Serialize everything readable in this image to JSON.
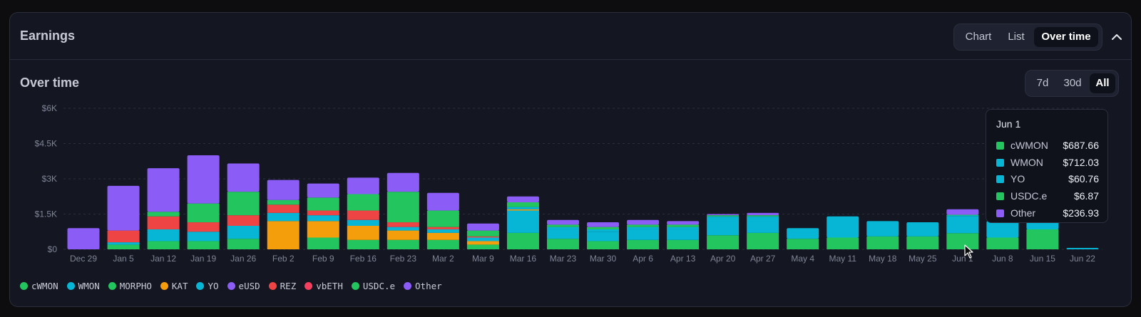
{
  "header": {
    "title": "Earnings",
    "view_options": [
      {
        "label": "Chart",
        "active": false
      },
      {
        "label": "List",
        "active": false
      },
      {
        "label": "Over time",
        "active": true
      }
    ],
    "collapse_icon": "chevron-up-icon"
  },
  "section": {
    "title": "Over time",
    "range_options": [
      {
        "label": "7d",
        "active": false
      },
      {
        "label": "30d",
        "active": false
      },
      {
        "label": "All",
        "active": true
      }
    ]
  },
  "colors": {
    "cWMON": "#22c55e",
    "WMON": "#06b6d4",
    "MORPHO": "#22c55e",
    "KAT": "#f59e0b",
    "YO": "#06b6d4",
    "eUSD": "#8b5cf6",
    "REZ": "#ef4444",
    "vbETH": "#f43f5e",
    "USDC.e": "#22c55e",
    "Other": "#8b5cf6"
  },
  "legend": [
    "cWMON",
    "WMON",
    "MORPHO",
    "KAT",
    "YO",
    "eUSD",
    "REZ",
    "vbETH",
    "USDC.e",
    "Other"
  ],
  "tooltip": {
    "title": "Jun 1",
    "rows": [
      {
        "name": "cWMON",
        "value": "$687.66",
        "color": "#22c55e"
      },
      {
        "name": "WMON",
        "value": "$712.03",
        "color": "#06b6d4"
      },
      {
        "name": "YO",
        "value": "$60.76",
        "color": "#06b6d4"
      },
      {
        "name": "USDC.e",
        "value": "$6.87",
        "color": "#22c55e"
      },
      {
        "name": "Other",
        "value": "$236.93",
        "color": "#8b5cf6"
      }
    ]
  },
  "chart_data": {
    "type": "bar",
    "stacked": true,
    "title": "",
    "xlabel": "",
    "ylabel": "",
    "ylim": [
      0,
      6000
    ],
    "yticks": [
      0,
      1500,
      3000,
      4500,
      6000
    ],
    "ytick_labels": [
      "$0",
      "$1.5K",
      "$3K",
      "$4.5K",
      "$6K"
    ],
    "grid": true,
    "categories": [
      "Dec 29",
      "Jan 5",
      "Jan 12",
      "Jan 19",
      "Jan 26",
      "Feb 2",
      "Feb 9",
      "Feb 16",
      "Feb 23",
      "Mar 2",
      "Mar 9",
      "Mar 16",
      "Mar 23",
      "Mar 30",
      "Apr 6",
      "Apr 13",
      "Apr 20",
      "Apr 27",
      "May 4",
      "May 11",
      "May 18",
      "May 25",
      "Jun 1",
      "Jun 8",
      "Jun 15",
      "Jun 22"
    ],
    "series": [
      {
        "name": "cWMON",
        "values": [
          0,
          0,
          0,
          0,
          0,
          0,
          0,
          0,
          0,
          0,
          0,
          700,
          450,
          350,
          400,
          400,
          600,
          700,
          450,
          500,
          550,
          550,
          688,
          500,
          850,
          0
        ]
      },
      {
        "name": "WMON",
        "values": [
          0,
          0,
          0,
          0,
          0,
          0,
          0,
          0,
          0,
          0,
          0,
          950,
          400,
          400,
          450,
          450,
          750,
          650,
          450,
          900,
          650,
          600,
          712,
          700,
          400,
          60
        ]
      },
      {
        "name": "MORPHO",
        "values": [
          0,
          200,
          350,
          350,
          450,
          0,
          500,
          400,
          400,
          400,
          200,
          0,
          0,
          0,
          0,
          0,
          0,
          0,
          0,
          0,
          0,
          0,
          0,
          0,
          0,
          0
        ]
      },
      {
        "name": "KAT",
        "values": [
          0,
          0,
          0,
          0,
          0,
          1200,
          700,
          600,
          400,
          300,
          150,
          50,
          0,
          0,
          0,
          0,
          0,
          0,
          0,
          0,
          0,
          0,
          0,
          0,
          0,
          0
        ]
      },
      {
        "name": "YO",
        "values": [
          0,
          100,
          500,
          400,
          550,
          350,
          250,
          250,
          150,
          150,
          150,
          100,
          100,
          100,
          100,
          100,
          50,
          50,
          0,
          0,
          0,
          0,
          61,
          0,
          0,
          0
        ]
      },
      {
        "name": "eUSD",
        "values": [
          0,
          0,
          0,
          0,
          0,
          0,
          0,
          0,
          0,
          0,
          0,
          0,
          0,
          0,
          0,
          0,
          0,
          0,
          0,
          0,
          0,
          0,
          0,
          0,
          0,
          0
        ]
      },
      {
        "name": "REZ",
        "values": [
          0,
          500,
          550,
          400,
          450,
          350,
          200,
          400,
          200,
          100,
          50,
          0,
          0,
          0,
          0,
          0,
          0,
          0,
          0,
          0,
          0,
          0,
          0,
          0,
          0,
          0
        ]
      },
      {
        "name": "vbETH",
        "values": [
          0,
          0,
          0,
          0,
          0,
          0,
          0,
          0,
          0,
          0,
          0,
          0,
          0,
          0,
          0,
          0,
          0,
          0,
          0,
          0,
          0,
          0,
          0,
          0,
          0,
          0
        ]
      },
      {
        "name": "USDC.e",
        "values": [
          0,
          0,
          200,
          800,
          1000,
          200,
          550,
          700,
          1300,
          700,
          250,
          200,
          100,
          100,
          100,
          100,
          50,
          50,
          0,
          0,
          0,
          0,
          7,
          0,
          0,
          0
        ]
      },
      {
        "name": "Other",
        "values": [
          900,
          1900,
          1850,
          2050,
          1200,
          850,
          600,
          700,
          800,
          750,
          300,
          250,
          200,
          200,
          200,
          150,
          50,
          100,
          0,
          0,
          0,
          0,
          237,
          0,
          0,
          0
        ]
      }
    ]
  }
}
